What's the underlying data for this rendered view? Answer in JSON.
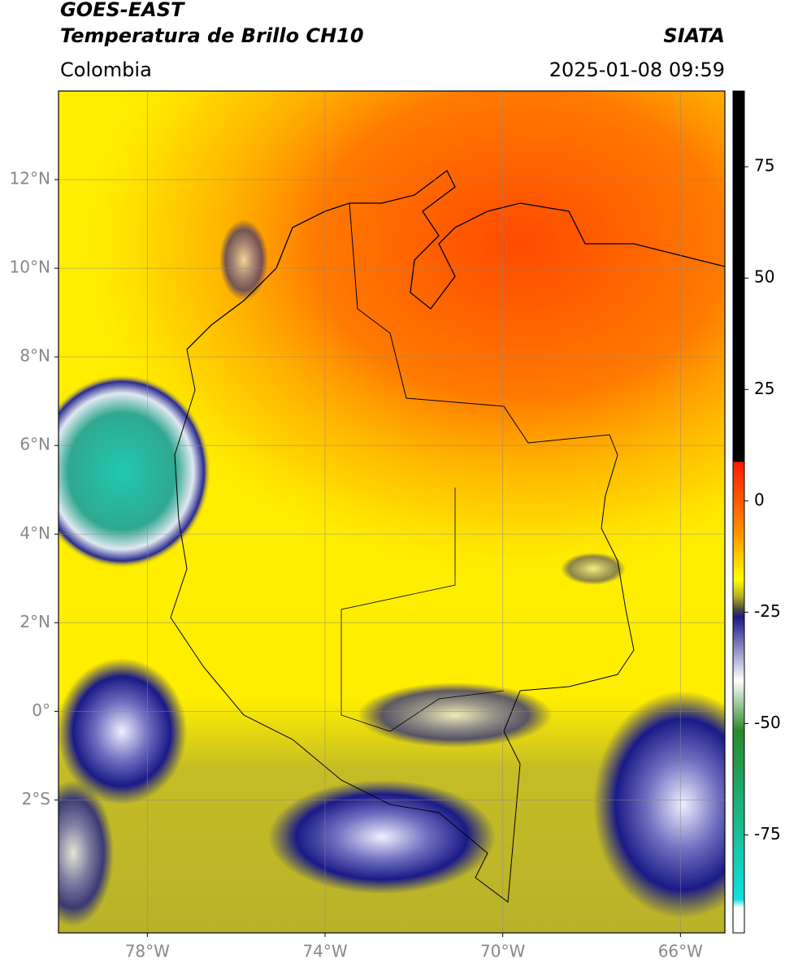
{
  "header": {
    "title": "GOES-EAST",
    "subtitle": "Temperatura de Brillo CH10",
    "source": "SIATA",
    "region": "Colombia",
    "timestamp": "2025-01-08 09:59"
  },
  "map": {
    "xlim": [
      -80,
      -65
    ],
    "ylim": [
      -5,
      14
    ],
    "grid": true,
    "xticks": [
      {
        "value": -78,
        "label": "78°W"
      },
      {
        "value": -74,
        "label": "74°W"
      },
      {
        "value": -70,
        "label": "70°W"
      },
      {
        "value": -66,
        "label": "66°W"
      }
    ],
    "yticks": [
      {
        "value": 12,
        "label": "12°N"
      },
      {
        "value": 10,
        "label": "10°N"
      },
      {
        "value": 8,
        "label": "8°N"
      },
      {
        "value": 6,
        "label": "6°N"
      },
      {
        "value": 4,
        "label": "4°N"
      },
      {
        "value": 2,
        "label": "2°N"
      },
      {
        "value": 0,
        "label": "0°"
      },
      {
        "value": -2,
        "label": "2°S"
      }
    ]
  },
  "colorbar": {
    "lim": [
      -97,
      92
    ],
    "ticks": [
      75,
      50,
      25,
      0,
      -25,
      -50,
      -75
    ]
  }
}
